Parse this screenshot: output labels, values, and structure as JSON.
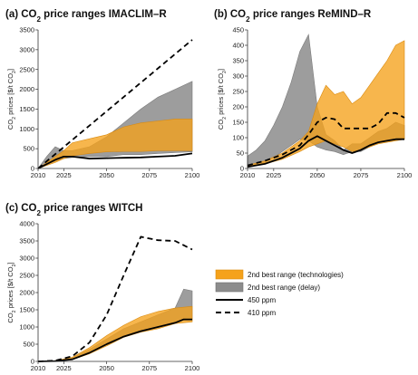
{
  "legend": [
    {
      "label": "2nd best range (technologies)",
      "kind": "band",
      "color": "#F5A21B"
    },
    {
      "label": "2nd best range (delay)",
      "kind": "band",
      "color": "#8C8C8C"
    },
    {
      "label": "450 ppm",
      "kind": "solid",
      "color": "#000000"
    },
    {
      "label": "410 ppm",
      "kind": "dashed",
      "color": "#000000"
    }
  ],
  "chart_data": [
    {
      "type": "area",
      "title_prefix": "(a) CO",
      "title_sub": "2",
      "title_suffix": " price ranges IMACLIM–R",
      "ylabel_prefix": "CO",
      "ylabel_sub": "2",
      "ylabel_mid": " prices [$/t CO",
      "ylabel_sub2": "2",
      "ylabel_suffix": "]",
      "xlim": [
        2010,
        2100
      ],
      "ylim": [
        0,
        3500
      ],
      "xticks": [
        "2010",
        "2025",
        "2050",
        "2075",
        "2100"
      ],
      "yticks": [
        "0",
        "500",
        "1000",
        "1500",
        "2000",
        "2500",
        "3000",
        "3500"
      ],
      "series": [
        {
          "kind": "band",
          "color": "#8C8C8C",
          "x": [
            2010,
            2015,
            2020,
            2025,
            2030,
            2040,
            2050,
            2060,
            2070,
            2080,
            2090,
            2100
          ],
          "upper": [
            0,
            300,
            550,
            450,
            450,
            550,
            800,
            1150,
            1500,
            1800,
            2000,
            2200
          ],
          "lower": [
            0,
            100,
            180,
            250,
            280,
            300,
            300,
            350,
            350,
            380,
            400,
            420
          ]
        },
        {
          "kind": "band",
          "color": "#F5A21B",
          "x": [
            2010,
            2020,
            2025,
            2030,
            2040,
            2050,
            2060,
            2070,
            2080,
            2090,
            2100
          ],
          "upper": [
            0,
            300,
            450,
            650,
            750,
            850,
            1050,
            1150,
            1200,
            1250,
            1250
          ],
          "lower": [
            0,
            150,
            250,
            320,
            380,
            420,
            430,
            430,
            450,
            450,
            450
          ]
        },
        {
          "kind": "solid",
          "color": "#000000",
          "x": [
            2010,
            2020,
            2025,
            2030,
            2040,
            2050,
            2060,
            2070,
            2080,
            2090,
            2100
          ],
          "y": [
            0,
            220,
            300,
            300,
            250,
            260,
            270,
            280,
            300,
            320,
            380
          ]
        },
        {
          "kind": "dashed",
          "color": "#000000",
          "x": [
            2010,
            2100
          ],
          "y": [
            0,
            3250
          ]
        }
      ]
    },
    {
      "type": "area",
      "title_prefix": "(b) CO",
      "title_sub": "2",
      "title_suffix": " price ranges ReMIND–R",
      "ylabel_prefix": "CO",
      "ylabel_sub": "2",
      "ylabel_mid": " prices [$/t CO",
      "ylabel_sub2": "2",
      "ylabel_suffix": "]",
      "xlim": [
        2010,
        2100
      ],
      "ylim": [
        0,
        450
      ],
      "xticks": [
        "2010",
        "2025",
        "2050",
        "2075",
        "2100"
      ],
      "yticks": [
        "0",
        "50",
        "100",
        "150",
        "200",
        "250",
        "300",
        "350",
        "400",
        "450"
      ],
      "series": [
        {
          "kind": "band",
          "color": "#8C8C8C",
          "x": [
            2010,
            2015,
            2020,
            2025,
            2030,
            2035,
            2040,
            2045,
            2050,
            2055,
            2060,
            2065,
            2070,
            2075,
            2080,
            2085,
            2090,
            2095,
            2100
          ],
          "upper": [
            40,
            60,
            90,
            140,
            200,
            280,
            380,
            435,
            200,
            110,
            90,
            60,
            80,
            80,
            100,
            120,
            130,
            150,
            140
          ],
          "lower": [
            5,
            10,
            20,
            35,
            55,
            75,
            95,
            90,
            70,
            60,
            55,
            45,
            55,
            55,
            70,
            85,
            90,
            100,
            95
          ]
        },
        {
          "kind": "band",
          "color": "#F5A21B",
          "x": [
            2010,
            2020,
            2030,
            2040,
            2045,
            2050,
            2055,
            2060,
            2065,
            2070,
            2075,
            2080,
            2085,
            2090,
            2095,
            2100
          ],
          "upper": [
            10,
            25,
            50,
            90,
            120,
            210,
            270,
            240,
            250,
            210,
            230,
            270,
            310,
            350,
            400,
            415
          ],
          "lower": [
            5,
            15,
            30,
            55,
            70,
            80,
            90,
            80,
            70,
            55,
            60,
            70,
            80,
            85,
            90,
            95
          ]
        },
        {
          "kind": "solid",
          "color": "#000000",
          "x": [
            2010,
            2020,
            2030,
            2040,
            2045,
            2050,
            2055,
            2060,
            2065,
            2070,
            2075,
            2080,
            2085,
            2090,
            2095,
            2100
          ],
          "y": [
            5,
            15,
            35,
            65,
            90,
            105,
            90,
            75,
            60,
            50,
            60,
            75,
            85,
            90,
            95,
            95
          ]
        },
        {
          "kind": "dashed",
          "color": "#000000",
          "x": [
            2010,
            2020,
            2030,
            2040,
            2045,
            2050,
            2055,
            2060,
            2065,
            2070,
            2075,
            2080,
            2085,
            2090,
            2095,
            2100
          ],
          "y": [
            10,
            25,
            45,
            75,
            110,
            150,
            165,
            160,
            130,
            130,
            130,
            130,
            145,
            180,
            180,
            165
          ]
        }
      ]
    },
    {
      "type": "area",
      "title_prefix": "(c) CO",
      "title_sub": "2",
      "title_suffix": " price ranges WITCH",
      "ylabel_prefix": "CO",
      "ylabel_sub": "2",
      "ylabel_mid": " prices [$/t CO",
      "ylabel_sub2": "2",
      "ylabel_suffix": "]",
      "xlim": [
        2010,
        2100
      ],
      "ylim": [
        0,
        4000
      ],
      "xticks": [
        "2010",
        "2025",
        "2050",
        "2075",
        "2100"
      ],
      "yticks": [
        "0",
        "500",
        "1000",
        "1500",
        "2000",
        "2500",
        "3000",
        "3500",
        "4000"
      ],
      "series": [
        {
          "kind": "band",
          "color": "#8C8C8C",
          "x": [
            2010,
            2020,
            2030,
            2040,
            2050,
            2060,
            2070,
            2080,
            2090,
            2095,
            2100
          ],
          "upper": [
            0,
            20,
            100,
            350,
            650,
            950,
            1150,
            1350,
            1550,
            2100,
            2050
          ],
          "lower": [
            0,
            10,
            60,
            250,
            500,
            750,
            900,
            1000,
            1150,
            1200,
            1200
          ]
        },
        {
          "kind": "band",
          "color": "#F5A21B",
          "x": [
            2010,
            2020,
            2030,
            2040,
            2050,
            2060,
            2070,
            2080,
            2090,
            2100
          ],
          "upper": [
            0,
            20,
            120,
            400,
            750,
            1050,
            1300,
            1450,
            1550,
            1600
          ],
          "lower": [
            0,
            10,
            50,
            220,
            450,
            700,
            850,
            950,
            1100,
            1150
          ]
        },
        {
          "kind": "solid",
          "color": "#000000",
          "x": [
            2010,
            2020,
            2030,
            2040,
            2050,
            2060,
            2070,
            2080,
            2090,
            2095,
            2100
          ],
          "y": [
            0,
            10,
            60,
            250,
            500,
            720,
            880,
            1000,
            1120,
            1220,
            1220
          ]
        },
        {
          "kind": "dashed",
          "color": "#000000",
          "x": [
            2010,
            2020,
            2030,
            2040,
            2050,
            2060,
            2070,
            2080,
            2090,
            2100
          ],
          "y": [
            0,
            20,
            150,
            550,
            1350,
            2500,
            3620,
            3520,
            3500,
            3250
          ]
        }
      ]
    }
  ]
}
